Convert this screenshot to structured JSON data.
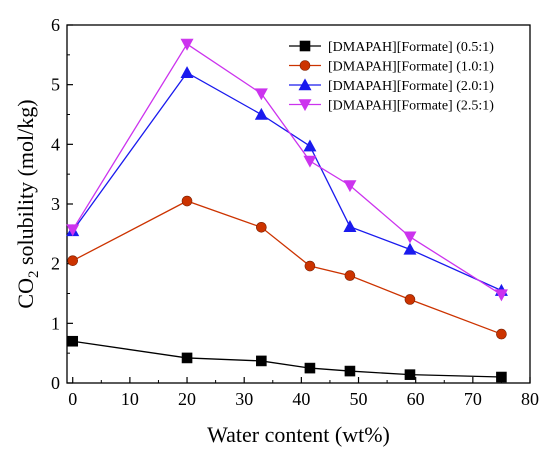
{
  "chart_data": {
    "type": "line",
    "title": "",
    "xlabel": "Water content (wt%)",
    "ylabel_main": "CO",
    "ylabel_sub": "2",
    "ylabel_rest": " solubility (mol/kg)",
    "xlim": [
      -1,
      80
    ],
    "ylim": [
      0,
      6
    ],
    "xticks": [
      "0",
      "10",
      "20",
      "30",
      "40",
      "50",
      "60",
      "70",
      "80"
    ],
    "yticks": [
      "0",
      "1",
      "2",
      "3",
      "4",
      "5",
      "6"
    ],
    "grid": false,
    "legend_position": "top-right",
    "series": [
      {
        "name": "[DMAPAH][Formate] (0.5:1)",
        "color": "#000000",
        "marker": "square",
        "x": [
          0,
          20,
          33,
          41.5,
          48.5,
          59,
          75
        ],
        "y": [
          0.7,
          0.42,
          0.37,
          0.25,
          0.2,
          0.14,
          0.1
        ]
      },
      {
        "name": "[DMAPAH][Formate] (1.0:1)",
        "color": "#cc3300",
        "marker": "circle",
        "x": [
          0,
          20,
          33,
          41.5,
          48.5,
          59,
          75
        ],
        "y": [
          2.05,
          3.05,
          2.61,
          1.96,
          1.8,
          1.4,
          0.82
        ]
      },
      {
        "name": "[DMAPAH][Formate] (2.0:1)",
        "color": "#1a1aee",
        "marker": "triangle-up",
        "x": [
          0,
          20,
          33,
          41.5,
          48.5,
          59,
          75
        ],
        "y": [
          2.55,
          5.2,
          4.5,
          3.97,
          2.62,
          2.24,
          1.55
        ]
      },
      {
        "name": "[DMAPAH][Formate] (2.5:1)",
        "color": "#cc33ee",
        "marker": "triangle-down",
        "x": [
          0,
          20,
          33,
          41.5,
          48.5,
          59,
          75
        ],
        "y": [
          2.57,
          5.68,
          4.85,
          3.72,
          3.31,
          2.45,
          1.48
        ]
      }
    ]
  }
}
